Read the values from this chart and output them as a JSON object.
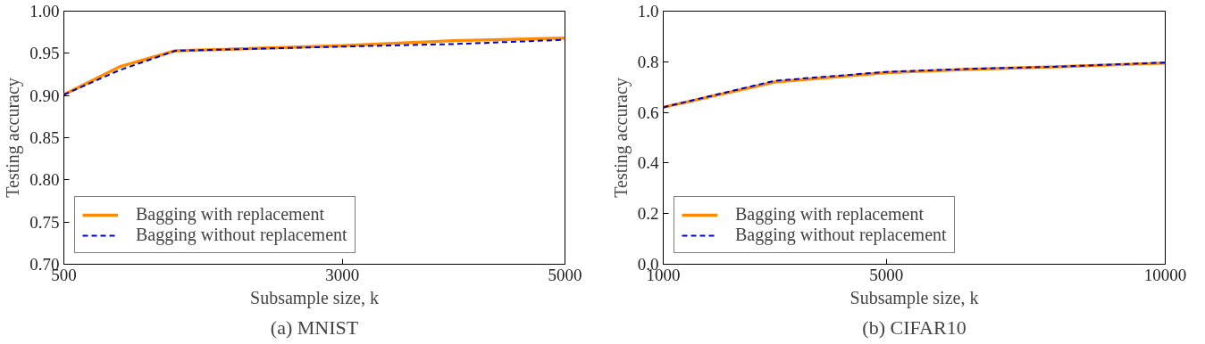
{
  "chart_data": [
    {
      "type": "line",
      "title": "(a) MNIST",
      "xlabel": "Subsample size, k",
      "ylabel": "Testing accuracy",
      "x": [
        500,
        1000,
        1500,
        3000,
        4000,
        5000
      ],
      "series": [
        {
          "name": "Bagging with replacement",
          "color": "#ff8c00",
          "line_style": "solid",
          "values": [
            0.901,
            0.934,
            0.953,
            0.959,
            0.965,
            0.968
          ]
        },
        {
          "name": "Bagging without replacement",
          "color": "#0000cc",
          "line_style": "dashed",
          "values": [
            0.901,
            0.93,
            0.953,
            0.958,
            0.961,
            0.966
          ]
        }
      ],
      "xlim": [
        500,
        5000
      ],
      "xticks": [
        500,
        3000,
        5000
      ],
      "ylim": [
        0.7,
        1.0
      ],
      "yticks": [
        {
          "value": 0.7,
          "label": "0.70"
        },
        0.75,
        {
          "value": 0.8,
          "label": "0.80"
        },
        0.85,
        {
          "value": 0.9,
          "label": "0.90"
        },
        0.95,
        {
          "value": 1.0,
          "label": "1.00"
        }
      ],
      "legend": "bottom left",
      "grid": false
    },
    {
      "type": "line",
      "title": "(b) CIFAR10",
      "xlabel": "Subsample size, k",
      "ylabel": "Testing accuracy",
      "x": [
        1000,
        3000,
        5000,
        6500,
        8000,
        10000
      ],
      "series": [
        {
          "name": "Bagging with replacement",
          "color": "#ff8c00",
          "line_style": "solid",
          "values": [
            0.62,
            0.72,
            0.757,
            0.77,
            0.78,
            0.795
          ]
        },
        {
          "name": "Bagging without replacement",
          "color": "#0000cc",
          "line_style": "dashed",
          "values": [
            0.62,
            0.725,
            0.76,
            0.772,
            0.78,
            0.797
          ]
        }
      ],
      "xlim": [
        1000,
        10000
      ],
      "xticks": [
        1000,
        5000,
        10000
      ],
      "ylim": [
        0.0,
        1.0
      ],
      "yticks": [
        {
          "value": 0.0,
          "label": "0.0"
        },
        0.2,
        0.4,
        0.6,
        0.8,
        {
          "value": 1.0,
          "label": "1.0"
        }
      ],
      "legend": "bottom left",
      "grid": false
    }
  ]
}
